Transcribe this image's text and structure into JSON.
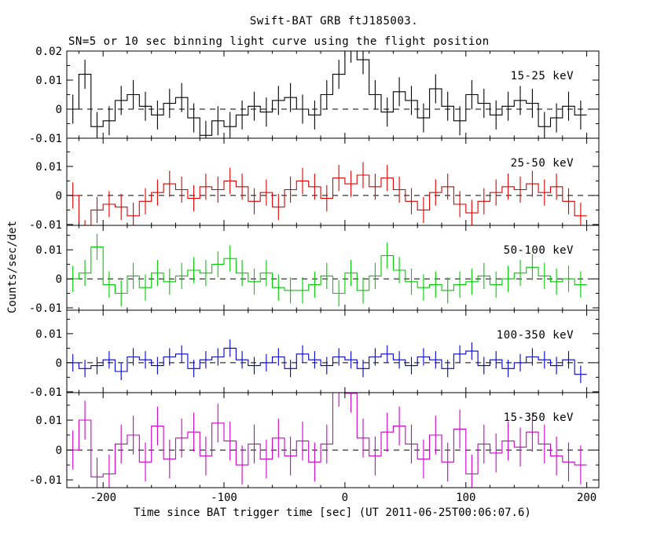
{
  "figure": {
    "title": "Swift-BAT GRB ftJ185003.",
    "subtitle": "SN=5 or 10 sec binning light curve using the flight position",
    "xlabel": "Time since BAT trigger time [sec] (UT 2011-06-25T00:06:07.6)",
    "ylabel": "Counts/sec/det"
  },
  "chart_data": {
    "type": "line",
    "style": "step-histogram-with-error-bars",
    "x_start": -230,
    "bin_width": 10,
    "xlim": [
      -230,
      210
    ],
    "x_ticks": [
      {
        "v": -200,
        "label": "-200"
      },
      {
        "v": -100,
        "label": "-100"
      },
      {
        "v": 0,
        "label": "0"
      },
      {
        "v": 100,
        "label": "100"
      },
      {
        "v": 200,
        "label": "200"
      }
    ],
    "x_minor_tick_step": 20,
    "grid": false,
    "zero_line": "dashed",
    "panels": [
      {
        "label": "15-25 keV",
        "color": "#000000",
        "ylim": [
          -0.01,
          0.02
        ],
        "err": 0.005,
        "yticks": [
          {
            "v": 0.02,
            "label": "0.02"
          },
          {
            "v": 0.01,
            "label": "0.01"
          },
          {
            "v": 0,
            "label": "0"
          },
          {
            "v": -0.01,
            "label": "-0.01"
          }
        ],
        "values": [
          0,
          0.012,
          -0.006,
          -0.004,
          0.003,
          0.005,
          0.001,
          -0.002,
          0.002,
          0.004,
          -0.003,
          -0.009,
          -0.004,
          -0.006,
          -0.002,
          0.001,
          -0.001,
          0.003,
          0.004,
          0,
          -0.002,
          0.005,
          0.012,
          0.021,
          0.017,
          0.005,
          -0.001,
          0.006,
          0.003,
          -0.003,
          0.007,
          0.001,
          -0.004,
          0.005,
          0.002,
          -0.002,
          0.001,
          0.003,
          0.002,
          -0.006,
          -0.003,
          0.001,
          -0.002
        ]
      },
      {
        "label": "25-50 keV",
        "color": "#dd0000",
        "ylim": [
          -0.0103,
          0.0197
        ],
        "err": 0.0045,
        "yticks": [
          {
            "v": 0.01,
            "label": "0.01"
          },
          {
            "v": 0,
            "label": "0"
          },
          {
            "v": -0.01,
            "label": "-0.01"
          }
        ],
        "values": [
          0,
          -0.013,
          -0.005,
          -0.003,
          -0.004,
          -0.007,
          -0.002,
          0.001,
          0.004,
          0.002,
          -0.001,
          0.003,
          0.002,
          0.005,
          0.003,
          -0.002,
          0.001,
          -0.004,
          0.002,
          0.005,
          0.003,
          -0.001,
          0.006,
          0.004,
          0.007,
          0.003,
          0.006,
          0.002,
          -0.002,
          -0.005,
          0.001,
          0.003,
          -0.003,
          -0.006,
          -0.002,
          0.001,
          0.003,
          0.002,
          0.004,
          0.001,
          0.003,
          -0.002,
          -0.007
        ]
      },
      {
        "label": "50-100 keV",
        "color": "#00cc00",
        "ylim": [
          -0.0108,
          0.0184
        ],
        "err": 0.0045,
        "yticks": [
          {
            "v": 0.01,
            "label": "0.01"
          },
          {
            "v": 0,
            "label": "0"
          },
          {
            "v": -0.01,
            "label": "-0.01"
          }
        ],
        "values": [
          0,
          0.002,
          0.011,
          -0.002,
          -0.005,
          0.001,
          -0.003,
          0.002,
          -0.001,
          0.001,
          0.003,
          0.002,
          0.005,
          0.007,
          0.002,
          -0.001,
          0.002,
          -0.003,
          -0.004,
          -0.004,
          -0.002,
          0.001,
          -0.005,
          0.002,
          -0.004,
          0.001,
          0.008,
          0.003,
          -0.001,
          -0.003,
          -0.002,
          -0.004,
          -0.002,
          -0.001,
          0.001,
          -0.002,
          0,
          0.002,
          0.004,
          0.001,
          -0.001,
          0,
          -0.002
        ]
      },
      {
        "label": "100-350 keV",
        "color": "#0000cc",
        "ylim": [
          -0.0103,
          0.0181
        ],
        "err": 0.003,
        "yticks": [
          {
            "v": 0.01,
            "label": "0.01"
          },
          {
            "v": 0,
            "label": "0"
          },
          {
            "v": -0.01,
            "label": "-0.01"
          }
        ],
        "values": [
          0,
          -0.002,
          -0.001,
          0.001,
          -0.003,
          0.002,
          0.001,
          -0.001,
          0.002,
          0.003,
          -0.002,
          0.001,
          0.002,
          0.005,
          0.001,
          -0.001,
          0,
          0.002,
          -0.002,
          0.003,
          0.001,
          -0.001,
          0.002,
          0.001,
          -0.002,
          0.002,
          0.003,
          0.001,
          -0.001,
          0.002,
          0.001,
          -0.002,
          0.003,
          0.004,
          -0.001,
          0.001,
          -0.002,
          0,
          0.002,
          0.001,
          -0.001,
          0.001,
          -0.004
        ]
      },
      {
        "label": "15-350 keV",
        "color": "#cc00cc",
        "ylim": [
          -0.0126,
          0.0192
        ],
        "err": 0.0065,
        "yticks": [
          {
            "v": 0.01,
            "label": "0.01"
          },
          {
            "v": 0,
            "label": "0"
          },
          {
            "v": -0.01,
            "label": "-0.01"
          }
        ],
        "values": [
          0,
          0.01,
          -0.009,
          -0.008,
          0.002,
          0.005,
          -0.004,
          0.008,
          -0.003,
          0.004,
          0.006,
          -0.002,
          0.009,
          0.003,
          -0.005,
          0.002,
          -0.003,
          0.004,
          -0.002,
          0.003,
          -0.004,
          0.002,
          0.021,
          0.019,
          0.004,
          -0.002,
          0.006,
          0.008,
          0.002,
          -0.003,
          0.005,
          -0.004,
          0.007,
          -0.008,
          0.002,
          -0.001,
          0.003,
          0.001,
          0.006,
          0.002,
          -0.002,
          -0.004,
          -0.005
        ]
      }
    ]
  }
}
